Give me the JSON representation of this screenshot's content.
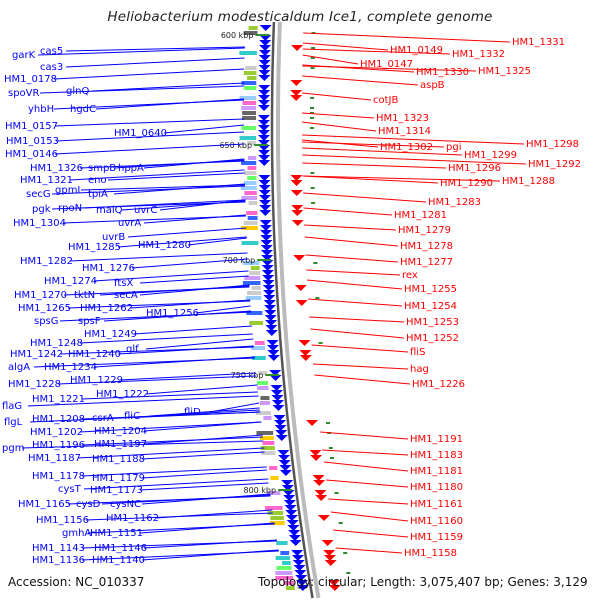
{
  "title": "Heliobacterium modesticaldum Ice1, complete genome",
  "footer": {
    "accession": "Accession: NC_010337",
    "summary": "Topology: circular; Length: 3,075,407 bp; Genes: 3,129"
  },
  "colors": {
    "forward": "#0000ff",
    "reverse": "#ff0000",
    "backbone": "#888888",
    "tick": "#2e8b2e",
    "text": "#222222"
  },
  "scale_ticks": [
    "600 kbp",
    "650 kbp",
    "700 kbp",
    "750 kbp",
    "800 kbp"
  ],
  "forward_labels": [
    "garK",
    "cas5",
    "cas3",
    "HM1_0178",
    "spoVR",
    "glnQ",
    "yhbH",
    "hgdC",
    "HM1_0157",
    "HM1_0640",
    "HM1_0153",
    "HM1_0146",
    "HM1_1326",
    "smpB",
    "hppA",
    "HM1_1321",
    "eno",
    "secG",
    "gpmI",
    "tpiA",
    "pgk",
    "rpoN",
    "malQ",
    "uvrC",
    "HM1_1304",
    "uvrA",
    "uvrB",
    "HM1_1285",
    "HM1_1280",
    "HM1_1282",
    "HM1_1276",
    "HM1_1274",
    "ftsX",
    "HM1_1270",
    "tktN",
    "secA",
    "HM1_1265",
    "HM1_1262",
    "spsG",
    "spsF",
    "HM1_1256",
    "HM1_1249",
    "HM1_1248",
    "glf",
    "HM1_1242",
    "HM1_1240",
    "algA",
    "HM1_1234",
    "HM1_1229",
    "HM1_1228",
    "HM1_1222",
    "flaG",
    "HM1_1221",
    "fliC",
    "fliD",
    "flgL",
    "HM1_1208",
    "csrA",
    "HM1_1204",
    "HM1_1202",
    "pgm",
    "HM1_1196",
    "HM1_1197",
    "HM1_1187",
    "HM1_1188",
    "HM1_1179",
    "HM1_1178",
    "cysT",
    "HM1_1173",
    "HM1_1165",
    "cysD",
    "cysNC",
    "HM1_1156",
    "HM1_1162",
    "gmhA",
    "HM1_1151",
    "HM1_1143",
    "HM1_1146",
    "HM1_1136",
    "HM1_1140"
  ],
  "reverse_labels": [
    "HM1_1331",
    "HM1_0149",
    "HM1_1332",
    "HM1_0147",
    "HM1_1330",
    "HM1_1325",
    "aspB",
    "cotJB",
    "HM1_1323",
    "HM1_1314",
    "HM1_1302",
    "pgi",
    "HM1_1298",
    "HM1_1299",
    "HM1_1296",
    "HM1_1292",
    "HM1_1290",
    "HM1_1288",
    "HM1_1283",
    "HM1_1281",
    "HM1_1279",
    "HM1_1278",
    "HM1_1277",
    "rex",
    "HM1_1255",
    "HM1_1254",
    "HM1_1253",
    "HM1_1252",
    "fliS",
    "hag",
    "HM1_1226",
    "HM1_1191",
    "HM1_1183",
    "HM1_1181",
    "HM1_1180",
    "HM1_1161",
    "HM1_1160",
    "HM1_1159",
    "HM1_1158"
  ]
}
